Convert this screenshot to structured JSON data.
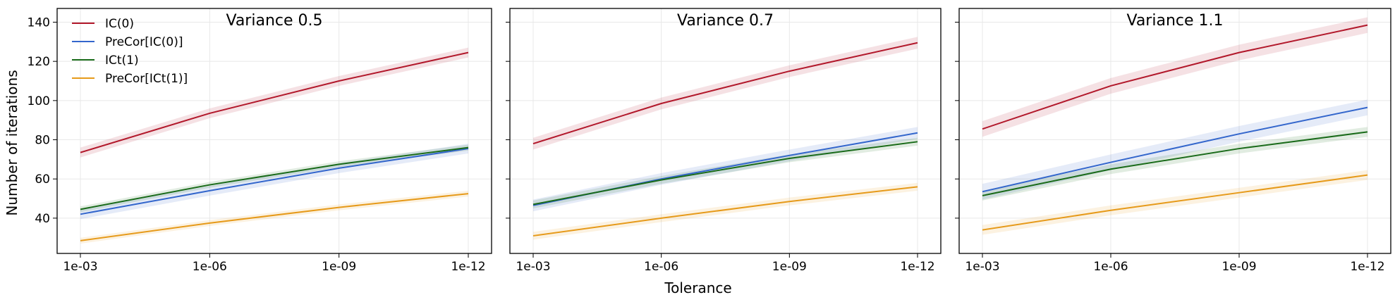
{
  "figure": {
    "xlabel": "Tolerance",
    "ylabel": "Number of iterations"
  },
  "chart_data": [
    {
      "type": "line",
      "title": "Variance 0.5",
      "categories": [
        "1e-03",
        "1e-06",
        "1e-09",
        "1e-12"
      ],
      "ylim": [
        22,
        147
      ],
      "yticks": [
        40,
        60,
        80,
        100,
        120,
        140
      ],
      "grid": true,
      "legend": "top-left",
      "series": [
        {
          "name": "IC(0)",
          "color": "#b2182b",
          "values": [
            73.5,
            93.5,
            110,
            124.5
          ],
          "band": 2.5
        },
        {
          "name": "PreCor[IC(0)]",
          "color": "#3366cc",
          "values": [
            42,
            54,
            65.5,
            75.5
          ],
          "band": 2.5
        },
        {
          "name": "ICt(1)",
          "color": "#1a6b1a",
          "values": [
            44.5,
            57,
            67.5,
            76
          ],
          "band": 1.5
        },
        {
          "name": "PreCor[ICt(1)]",
          "color": "#e69a1a",
          "values": [
            28.5,
            37.5,
            45.5,
            52.5
          ],
          "band": 1.5
        }
      ]
    },
    {
      "type": "line",
      "title": "Variance 0.7",
      "categories": [
        "1e-03",
        "1e-06",
        "1e-09",
        "1e-12"
      ],
      "ylim": [
        22,
        147
      ],
      "yticks": [
        40,
        60,
        80,
        100,
        120,
        140
      ],
      "grid": true,
      "series": [
        {
          "name": "IC(0)",
          "color": "#b2182b",
          "values": [
            78,
            98.5,
            115,
            129.5
          ],
          "band": 3
        },
        {
          "name": "PreCor[IC(0)]",
          "color": "#3366cc",
          "values": [
            46.5,
            60,
            72,
            83.5
          ],
          "band": 3
        },
        {
          "name": "ICt(1)",
          "color": "#1a6b1a",
          "values": [
            47,
            59.5,
            70.5,
            79
          ],
          "band": 2
        },
        {
          "name": "PreCor[ICt(1)]",
          "color": "#e69a1a",
          "values": [
            31,
            40,
            48.5,
            56
          ],
          "band": 2
        }
      ]
    },
    {
      "type": "line",
      "title": "Variance 1.1",
      "categories": [
        "1e-03",
        "1e-06",
        "1e-09",
        "1e-12"
      ],
      "ylim": [
        22,
        147
      ],
      "yticks": [
        40,
        60,
        80,
        100,
        120,
        140
      ],
      "grid": true,
      "series": [
        {
          "name": "IC(0)",
          "color": "#b2182b",
          "values": [
            85.5,
            107.5,
            124.5,
            138.5
          ],
          "band": 4
        },
        {
          "name": "PreCor[IC(0)]",
          "color": "#3366cc",
          "values": [
            53.5,
            68.5,
            83,
            96.5
          ],
          "band": 4
        },
        {
          "name": "ICt(1)",
          "color": "#1a6b1a",
          "values": [
            51.5,
            65,
            75.5,
            84
          ],
          "band": 2.5
        },
        {
          "name": "PreCor[ICt(1)]",
          "color": "#e69a1a",
          "values": [
            34,
            44,
            53,
            62
          ],
          "band": 2.5
        }
      ]
    }
  ]
}
